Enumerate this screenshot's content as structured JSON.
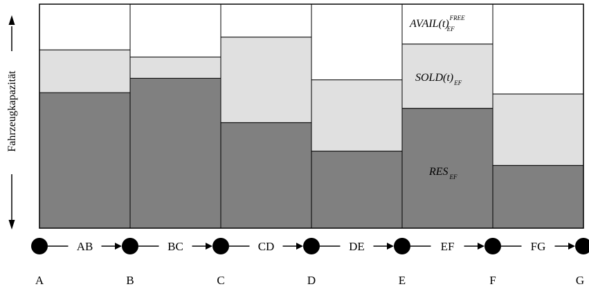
{
  "axis_label": "Fahrzeugkapazität",
  "colors": {
    "reserved": "#808080",
    "sold": "#e0e0e0",
    "free": "#ffffff",
    "border": "#000000"
  },
  "annotations": {
    "avail_main": "AVAIL(t)",
    "avail_sup": "FREE",
    "avail_sub": "EF",
    "sold_main": "SOLD(t)",
    "sold_sub": "EF",
    "res_main": "RES",
    "res_sub": "EF"
  },
  "nodes": [
    "A",
    "B",
    "C",
    "D",
    "E",
    "F",
    "G"
  ],
  "chart_data": {
    "type": "bar",
    "categories": [
      "AB",
      "BC",
      "CD",
      "DE",
      "EF",
      "FG"
    ],
    "ylim": [
      0,
      100
    ],
    "series": [
      {
        "key": "reserved",
        "values": [
          60.5,
          66.9,
          47.1,
          34.4,
          53.5,
          28.0
        ]
      },
      {
        "key": "sold",
        "values": [
          19.1,
          9.5,
          38.2,
          31.8,
          28.7,
          31.9
        ]
      },
      {
        "key": "free",
        "values": [
          20.4,
          23.6,
          14.7,
          33.8,
          17.8,
          40.1
        ]
      }
    ]
  }
}
